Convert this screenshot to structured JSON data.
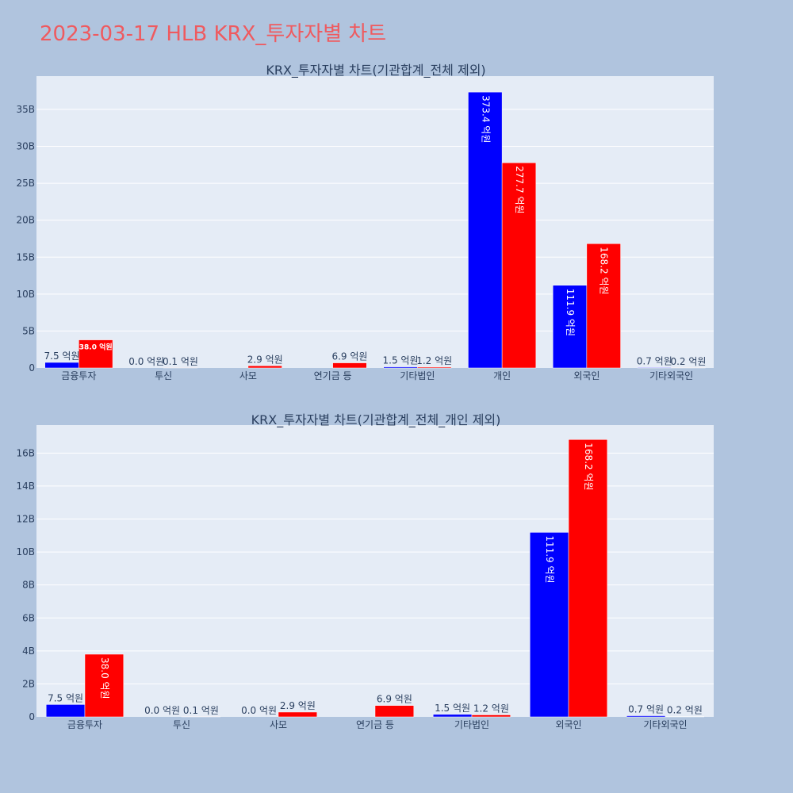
{
  "title": "2023-03-17 HLB KRX_투자자별 차트",
  "colors": {
    "background": "#b0c4de",
    "plot_bg": "#e5ecf6",
    "sell": "#0000ff",
    "buy": "#ff0000",
    "title": "#ef5a5f",
    "text": "#2a3f5f"
  },
  "chart_data": [
    {
      "type": "bar",
      "title": "KRX_투자자별 차트(기관합계_전체 제외)",
      "categories": [
        "금융투자",
        "투신",
        "사모",
        "연기금 등",
        "기타법인",
        "개인",
        "외국인",
        "기타외국인"
      ],
      "ylim": [
        0,
        39500000000
      ],
      "yticks": [
        0,
        5000000000,
        10000000000,
        15000000000,
        20000000000,
        25000000000,
        30000000000,
        35000000000
      ],
      "ytick_labels": [
        "0",
        "5B",
        "10B",
        "15B",
        "20B",
        "25B",
        "30B",
        "35B"
      ],
      "grid": true,
      "series": [
        {
          "color": "#0000ff",
          "values": [
            750000000,
            0,
            null,
            null,
            150000000,
            37340000000,
            11190000000,
            70000000
          ],
          "labels": [
            "7.5 억원",
            "0.0 억원",
            "",
            "",
            "1.5 억원",
            "373.4 억원",
            "111.9 억원",
            "0.7 억원"
          ]
        },
        {
          "color": "#ff0000",
          "values": [
            3800000000,
            10000000,
            290000000,
            690000000,
            120000000,
            27770000000,
            16820000000,
            20000000
          ],
          "labels": [
            "38.0 억원",
            "0.1 억원",
            "2.9 억원",
            "6.9 억원",
            "1.2 억원",
            "277.7 억원",
            "168.2 억원",
            "0.2 억원"
          ]
        }
      ]
    },
    {
      "type": "bar",
      "title": "KRX_투자자별 차트(기관합계_전체_개인 제외)",
      "categories": [
        "금융투자",
        "투신",
        "사모",
        "연기금 등",
        "기타법인",
        "외국인",
        "기타외국인"
      ],
      "ylim": [
        0,
        17700000000
      ],
      "yticks": [
        0,
        2000000000,
        4000000000,
        6000000000,
        8000000000,
        10000000000,
        12000000000,
        14000000000,
        16000000000
      ],
      "ytick_labels": [
        "0",
        "2B",
        "4B",
        "6B",
        "8B",
        "10B",
        "12B",
        "14B",
        "16B"
      ],
      "grid": true,
      "series": [
        {
          "color": "#0000ff",
          "values": [
            750000000,
            0,
            0,
            null,
            150000000,
            11190000000,
            70000000
          ],
          "labels": [
            "7.5 억원",
            "0.0 억원",
            "0.0 억원",
            "",
            "1.5 억원",
            "111.9 억원",
            "0.7 억원"
          ]
        },
        {
          "color": "#ff0000",
          "values": [
            3800000000,
            10000000,
            290000000,
            690000000,
            120000000,
            16820000000,
            20000000
          ],
          "labels": [
            "38.0 억원",
            "0.1 억원",
            "2.9 억원",
            "6.9 억원",
            "1.2 억원",
            "168.2 억원",
            "0.2 억원"
          ]
        }
      ]
    }
  ]
}
